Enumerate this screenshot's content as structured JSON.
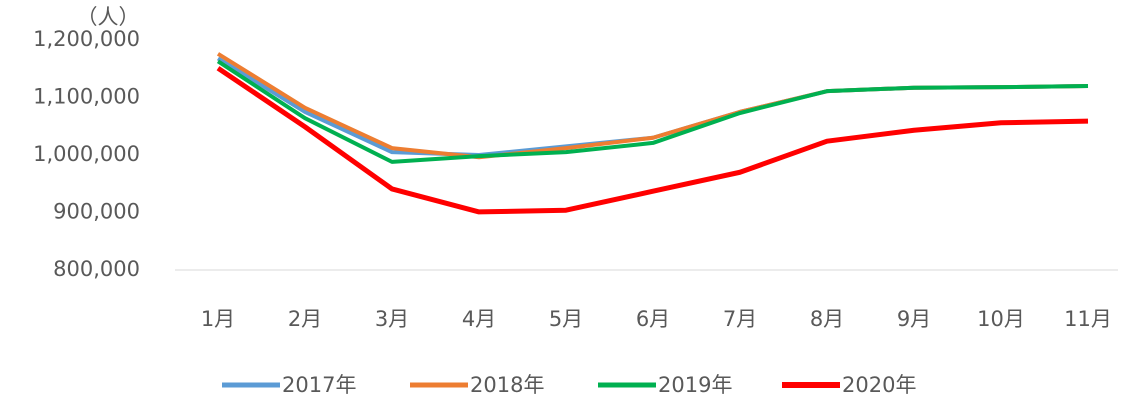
{
  "chart_data": {
    "type": "line",
    "unit_label": "（人）",
    "categories": [
      "1月",
      "2月",
      "3月",
      "4月",
      "5月",
      "6月",
      "7月",
      "8月",
      "9月",
      "10月",
      "11月"
    ],
    "series": [
      {
        "name": "2017年",
        "color": "#5b9bd5",
        "width": 4,
        "values": [
          1168000,
          1075000,
          1005000,
          1000000,
          1015000,
          1030000,
          1075000,
          1111000,
          1117000,
          1118000,
          1120000
        ]
      },
      {
        "name": "2018年",
        "color": "#ed7d31",
        "width": 4,
        "values": [
          1176000,
          1082000,
          1012000,
          996000,
          1012000,
          1030000,
          1075000,
          1111000,
          1117000,
          1118000,
          1120000
        ]
      },
      {
        "name": "2019年",
        "color": "#00b050",
        "width": 4,
        "values": [
          1163000,
          1064000,
          988000,
          998000,
          1005000,
          1021000,
          1073000,
          1111000,
          1117000,
          1118000,
          1120000
        ]
      },
      {
        "name": "2020年",
        "color": "#ff0000",
        "width": 5,
        "values": [
          1151000,
          1049000,
          941000,
          901000,
          904000,
          937000,
          970000,
          1024000,
          1043000,
          1056000,
          1059000
        ]
      }
    ],
    "ylim": [
      800000,
      1200000
    ],
    "yticks": [
      {
        "value": 800000,
        "label": "800,000"
      },
      {
        "value": 900000,
        "label": "900,000"
      },
      {
        "value": 1000000,
        "label": "1,000,000"
      },
      {
        "value": 1100000,
        "label": "1,100,000"
      },
      {
        "value": 1200000,
        "label": "1,200,000"
      }
    ],
    "grid": false
  }
}
